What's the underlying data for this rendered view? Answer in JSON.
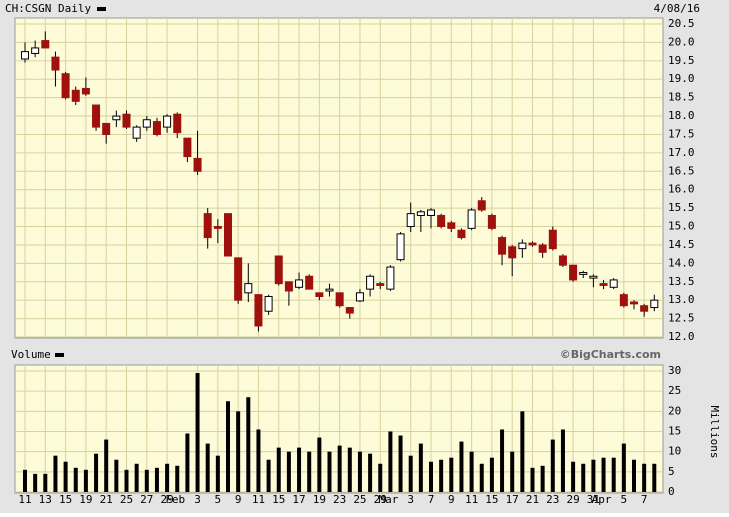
{
  "chart_data": [
    {
      "type": "candlestick",
      "title": "CH:CSGN Daily",
      "date": "4/08/16",
      "source": "©BigCharts.com",
      "categories": [
        "11",
        null,
        "13",
        null,
        "15",
        null,
        "19",
        null,
        "21",
        null,
        "25",
        null,
        "27",
        null,
        "29",
        null,
        null,
        "3",
        null,
        "5",
        null,
        "9",
        null,
        "11",
        null,
        "15",
        null,
        "17",
        null,
        "19",
        null,
        "23",
        null,
        "25",
        null,
        "29",
        null,
        null,
        "3",
        null,
        "7",
        null,
        "9",
        null,
        "11",
        null,
        "15",
        null,
        "17",
        null,
        "21",
        null,
        "23",
        null,
        "29",
        null,
        "31",
        null,
        null,
        "5",
        null,
        "7",
        null
      ],
      "month_labels": [
        {
          "label": "Feb",
          "category_index": 15
        },
        {
          "label": "Mar",
          "category_index": 36
        },
        {
          "label": "Apr",
          "category_index": 57
        }
      ],
      "open": [
        19.55,
        19.7,
        20.05,
        19.6,
        19.15,
        18.7,
        18.75,
        18.3,
        17.8,
        17.9,
        18.05,
        17.4,
        17.7,
        17.85,
        17.7,
        18.05,
        17.4,
        16.85,
        15.35,
        15.0,
        15.35,
        14.15,
        13.2,
        13.15,
        12.7,
        14.2,
        13.5,
        13.35,
        13.65,
        13.2,
        13.25,
        13.2,
        12.8,
        12.98,
        13.3,
        13.45,
        13.3,
        14.1,
        15.0,
        15.3,
        15.3,
        15.3,
        15.1,
        14.9,
        14.95,
        15.7,
        15.3,
        14.7,
        14.45,
        14.4,
        14.55,
        14.5,
        14.9,
        14.2,
        13.95,
        13.7,
        13.6,
        13.45,
        13.35,
        13.15,
        12.95,
        12.85,
        12.8
      ],
      "high": [
        20.0,
        20.05,
        20.3,
        19.75,
        19.2,
        18.8,
        19.05,
        18.3,
        17.8,
        18.15,
        18.15,
        17.75,
        18.0,
        17.95,
        18.05,
        18.1,
        17.4,
        17.6,
        15.5,
        15.2,
        15.35,
        14.15,
        14.0,
        13.15,
        13.15,
        14.2,
        13.5,
        13.75,
        13.7,
        13.2,
        13.45,
        13.2,
        12.8,
        13.3,
        13.7,
        13.5,
        13.95,
        14.85,
        15.65,
        15.45,
        15.5,
        15.35,
        15.15,
        14.95,
        15.5,
        15.8,
        15.35,
        14.75,
        14.5,
        14.65,
        14.6,
        14.55,
        15.0,
        14.25,
        13.95,
        13.8,
        13.7,
        13.55,
        13.6,
        13.2,
        13.0,
        12.9,
        13.15
      ],
      "low": [
        19.45,
        19.6,
        19.85,
        18.8,
        18.45,
        18.3,
        18.55,
        17.6,
        17.25,
        17.7,
        17.65,
        17.3,
        17.6,
        17.45,
        17.55,
        17.4,
        16.75,
        16.4,
        14.4,
        14.55,
        14.2,
        12.9,
        12.95,
        12.15,
        12.6,
        13.4,
        12.85,
        13.3,
        13.3,
        13.0,
        13.1,
        12.8,
        12.5,
        12.95,
        13.1,
        13.3,
        13.25,
        14.05,
        14.85,
        14.85,
        14.95,
        14.95,
        14.85,
        14.65,
        14.9,
        15.4,
        14.9,
        13.95,
        13.65,
        14.15,
        14.45,
        14.15,
        14.35,
        13.9,
        13.5,
        13.6,
        13.35,
        13.3,
        13.3,
        12.8,
        12.75,
        12.55,
        12.7
      ],
      "close": [
        19.75,
        19.85,
        19.85,
        19.25,
        18.5,
        18.4,
        18.6,
        17.7,
        17.5,
        18.0,
        17.7,
        17.7,
        17.9,
        17.5,
        18.0,
        17.55,
        16.9,
        16.5,
        14.7,
        14.95,
        14.2,
        13.0,
        13.45,
        12.3,
        13.1,
        13.45,
        13.25,
        13.55,
        13.3,
        13.1,
        13.3,
        12.85,
        12.65,
        13.2,
        13.65,
        13.4,
        13.9,
        14.8,
        15.35,
        15.4,
        15.45,
        15.0,
        14.95,
        14.7,
        15.45,
        15.45,
        14.95,
        14.25,
        14.15,
        14.55,
        14.5,
        14.3,
        14.4,
        13.95,
        13.55,
        13.75,
        13.65,
        13.4,
        13.55,
        12.85,
        12.9,
        12.7,
        13.0
      ],
      "up_color": "#ffffff",
      "down_color": "#a0100c",
      "grid": true,
      "ylim": [
        12,
        20.5
      ],
      "yticks": [
        {
          "value": 12,
          "label": "12.0"
        },
        {
          "value": 12.5,
          "label": "12.5"
        },
        {
          "value": 13,
          "label": "13.0"
        },
        {
          "value": 13.5,
          "label": "13.5"
        },
        {
          "value": 14,
          "label": "14.0"
        },
        {
          "value": 14.5,
          "label": "14.5"
        },
        {
          "value": 15,
          "label": "15.0"
        },
        {
          "value": 15.5,
          "label": "15.5"
        },
        {
          "value": 16,
          "label": "16.0"
        },
        {
          "value": 16.5,
          "label": "16.5"
        },
        {
          "value": 17,
          "label": "17.0"
        },
        {
          "value": 17.5,
          "label": "17.5"
        },
        {
          "value": 18,
          "label": "18.0"
        },
        {
          "value": 18.5,
          "label": "18.5"
        },
        {
          "value": 19,
          "label": "19.0"
        },
        {
          "value": 19.5,
          "label": "19.5"
        },
        {
          "value": 20,
          "label": "20.0"
        },
        {
          "value": 20.5,
          "label": "20.5"
        }
      ]
    },
    {
      "type": "bar",
      "title": "Volume",
      "y_label": "Millions",
      "color": "#000000",
      "grid": true,
      "values": [
        5.5,
        4.5,
        4.5,
        9,
        7.5,
        6,
        5.5,
        9.5,
        13,
        8,
        5.5,
        7,
        5.5,
        6,
        7,
        6.5,
        14.5,
        29.5,
        12,
        9,
        22.5,
        20,
        23.5,
        15.5,
        8,
        11,
        10,
        11,
        10,
        13.5,
        10,
        11.5,
        11,
        10,
        9.5,
        7,
        15,
        14,
        9,
        12,
        7.5,
        8,
        8.5,
        12.5,
        10,
        7,
        8.5,
        15.5,
        10,
        20,
        6,
        6.5,
        13,
        15.5,
        7.5,
        7,
        8,
        8.5,
        8.5,
        12,
        8,
        7,
        7
      ],
      "ylim": [
        0,
        30
      ],
      "yticks": [
        0,
        5,
        10,
        15,
        20,
        25,
        30
      ]
    }
  ]
}
